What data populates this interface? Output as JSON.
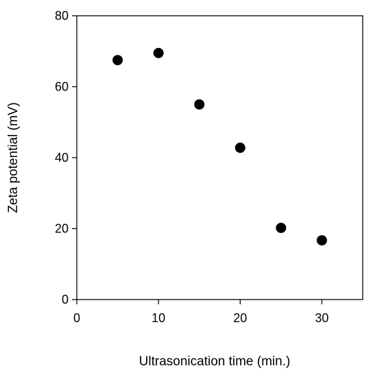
{
  "chart_data": {
    "type": "scatter",
    "title": "",
    "xlabel": "Ultrasonication time (min.)",
    "ylabel": "Zeta potential (mV)",
    "xlim": [
      0,
      35
    ],
    "ylim": [
      0,
      80
    ],
    "xticks": [
      0,
      10,
      20,
      30
    ],
    "yticks": [
      0,
      20,
      40,
      60,
      80
    ],
    "xtick_labels": [
      "0",
      "10",
      "20",
      "30"
    ],
    "ytick_labels": [
      "0",
      "20",
      "40",
      "60",
      "80"
    ],
    "grid": false,
    "legend": "none",
    "marker_color": "#000000",
    "series": [
      {
        "x": [
          5,
          10,
          15,
          20,
          25,
          30
        ],
        "y": [
          67.5,
          69.5,
          55,
          42.8,
          20.2,
          16.7
        ]
      }
    ]
  }
}
